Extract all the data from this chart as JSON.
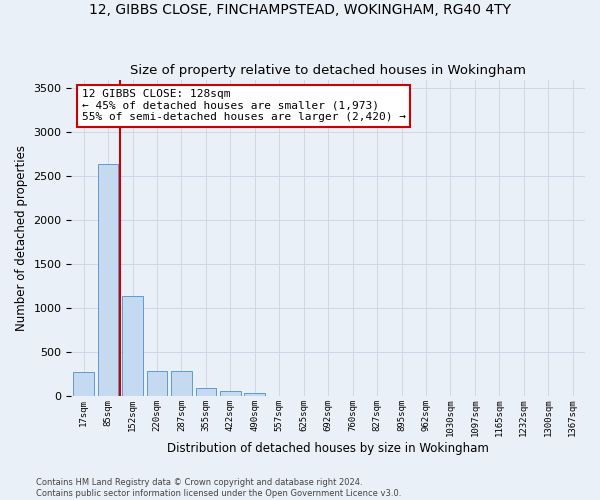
{
  "title1": "12, GIBBS CLOSE, FINCHAMPSTEAD, WOKINGHAM, RG40 4TY",
  "title2": "Size of property relative to detached houses in Wokingham",
  "xlabel": "Distribution of detached houses by size in Wokingham",
  "ylabel": "Number of detached properties",
  "footer1": "Contains HM Land Registry data © Crown copyright and database right 2024.",
  "footer2": "Contains public sector information licensed under the Open Government Licence v3.0.",
  "bar_color": "#c5d9f0",
  "bar_edge_color": "#5b9bd5",
  "annotation_box_text": "12 GIBBS CLOSE: 128sqm\n← 45% of detached houses are smaller (1,973)\n55% of semi-detached houses are larger (2,420) →",
  "annotation_box_color": "#ffffff",
  "annotation_box_edge_color": "#cc0000",
  "vline_bar_index": 1,
  "vline_color": "#cc0000",
  "categories": [
    "17sqm",
    "85sqm",
    "152sqm",
    "220sqm",
    "287sqm",
    "355sqm",
    "422sqm",
    "490sqm",
    "557sqm",
    "625sqm",
    "692sqm",
    "760sqm",
    "827sqm",
    "895sqm",
    "962sqm",
    "1030sqm",
    "1097sqm",
    "1165sqm",
    "1232sqm",
    "1300sqm",
    "1367sqm"
  ],
  "values": [
    270,
    2640,
    1140,
    290,
    290,
    95,
    60,
    38,
    0,
    0,
    0,
    0,
    0,
    0,
    0,
    0,
    0,
    0,
    0,
    0,
    0
  ],
  "ylim": [
    0,
    3600
  ],
  "yticks": [
    0,
    500,
    1000,
    1500,
    2000,
    2500,
    3000,
    3500
  ],
  "grid_color": "#d0d8e8",
  "bg_color": "#eaf0f8",
  "title_fontsize": 10,
  "subtitle_fontsize": 9.5
}
